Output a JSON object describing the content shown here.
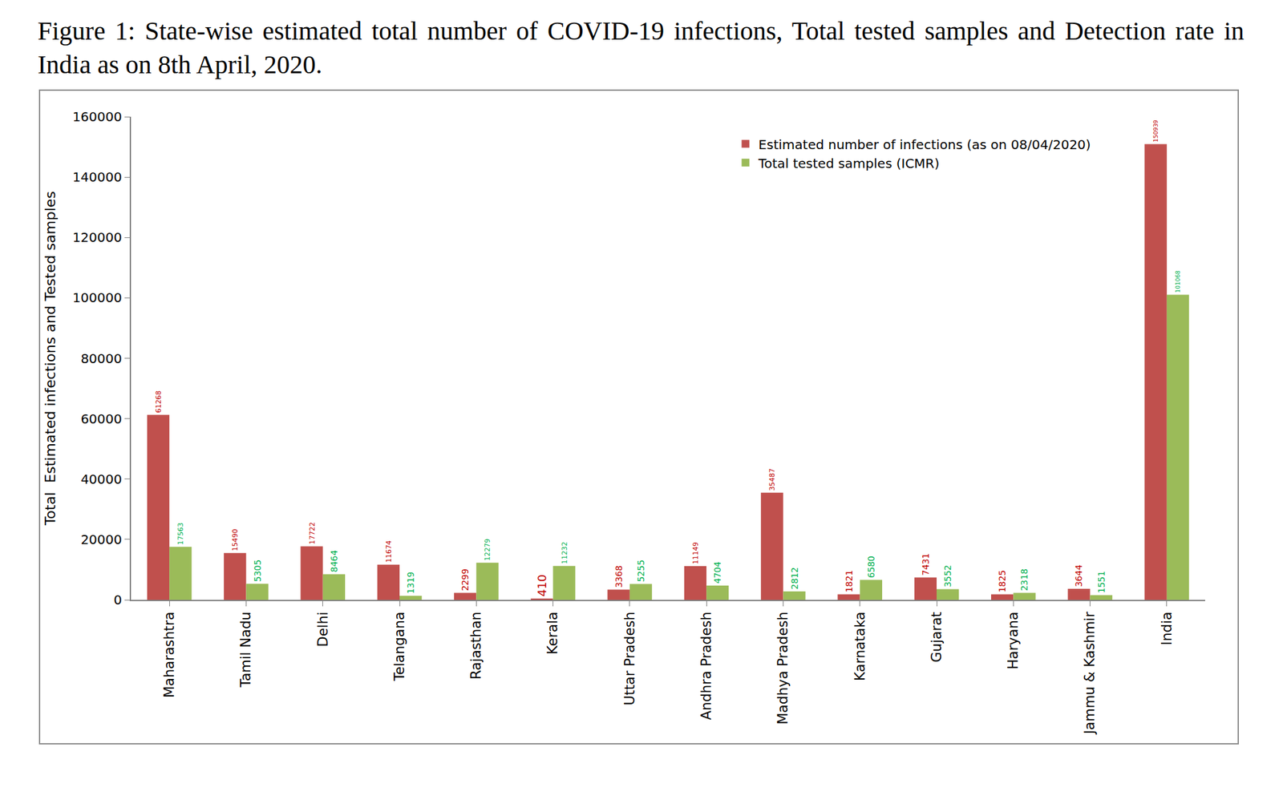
{
  "chart_data": {
    "type": "bar",
    "title": "Figure 1: State-wise estimated total number of COVID-19 infections, Total tested samples and Detection rate in India as on 8th April, 2020.",
    "y_label": "Total  Estimated infections and Tested samples",
    "categories": [
      "Maharashtra",
      "Tamil Nadu",
      "Delhi",
      "Telangana",
      "Rajasthan",
      "Kerala",
      "Uttar Pradesh",
      "Andhra Pradesh",
      "Madhya Pradesh",
      "Karnataka",
      "Gujarat",
      "Haryana",
      "Jammu & Kashmir",
      "India"
    ],
    "series": [
      {
        "name": "Estimated number of infections (as on 08/04/2020)",
        "color": "#c0504d",
        "values": [
          61268,
          15490,
          17722,
          11674,
          2299,
          410,
          3368,
          11149,
          35487,
          1821,
          7431,
          1825,
          3644,
          150939
        ]
      },
      {
        "name": "Total tested samples (ICMR)",
        "color": "#9bbb59",
        "values": [
          17563,
          5305,
          8464,
          1319,
          12279,
          11232,
          5255,
          4704,
          2812,
          6580,
          3552,
          2318,
          1551,
          101068
        ]
      }
    ],
    "ylim": [
      0,
      160000
    ],
    "yticks": [
      0,
      20000,
      40000,
      60000,
      80000,
      100000,
      120000,
      140000,
      160000
    ],
    "grid": false,
    "legend": "upper right",
    "data_labels": true
  }
}
